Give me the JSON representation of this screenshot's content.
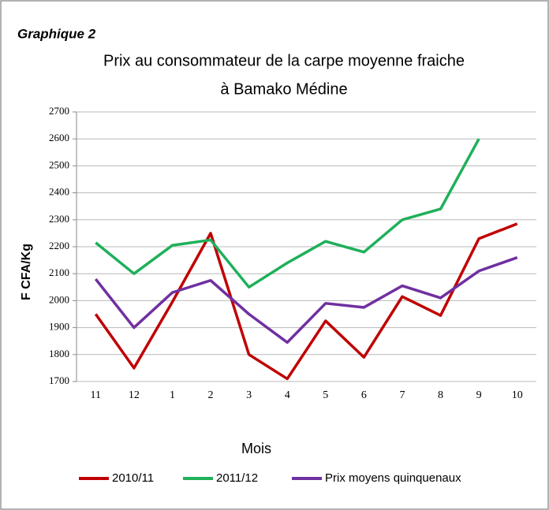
{
  "chart_data": {
    "type": "line",
    "caption": "Graphique 2",
    "title": [
      "Prix au consommateur de la carpe  moyenne fraiche",
      "à Bamako  Médine"
    ],
    "xlabel": "Mois",
    "ylabel": "F CFA/Kg",
    "categories": [
      "11",
      "12",
      "1",
      "2",
      "3",
      "4",
      "5",
      "6",
      "7",
      "8",
      "9",
      "10"
    ],
    "series": [
      {
        "name": "2010/11",
        "color": "#c00000",
        "values": [
          1950,
          1750,
          1995,
          2250,
          1800,
          1710,
          1925,
          1790,
          2015,
          1945,
          2230,
          2285
        ]
      },
      {
        "name": "2011/12",
        "color": "#1fb05a",
        "values": [
          2215,
          2100,
          2205,
          2225,
          2050,
          2140,
          2220,
          2180,
          2300,
          2340,
          2600,
          null
        ]
      },
      {
        "name": "Prix moyens quinquenaux",
        "color": "#7030a0",
        "values": [
          2080,
          1900,
          2030,
          2075,
          1950,
          1845,
          1990,
          1975,
          2055,
          2010,
          2110,
          2160
        ]
      }
    ],
    "ylim": [
      1700,
      2700
    ],
    "yticks": [
      1700,
      1800,
      1900,
      2000,
      2100,
      2200,
      2300,
      2400,
      2500,
      2600,
      2700
    ],
    "grid": true,
    "legend": "bottom"
  }
}
